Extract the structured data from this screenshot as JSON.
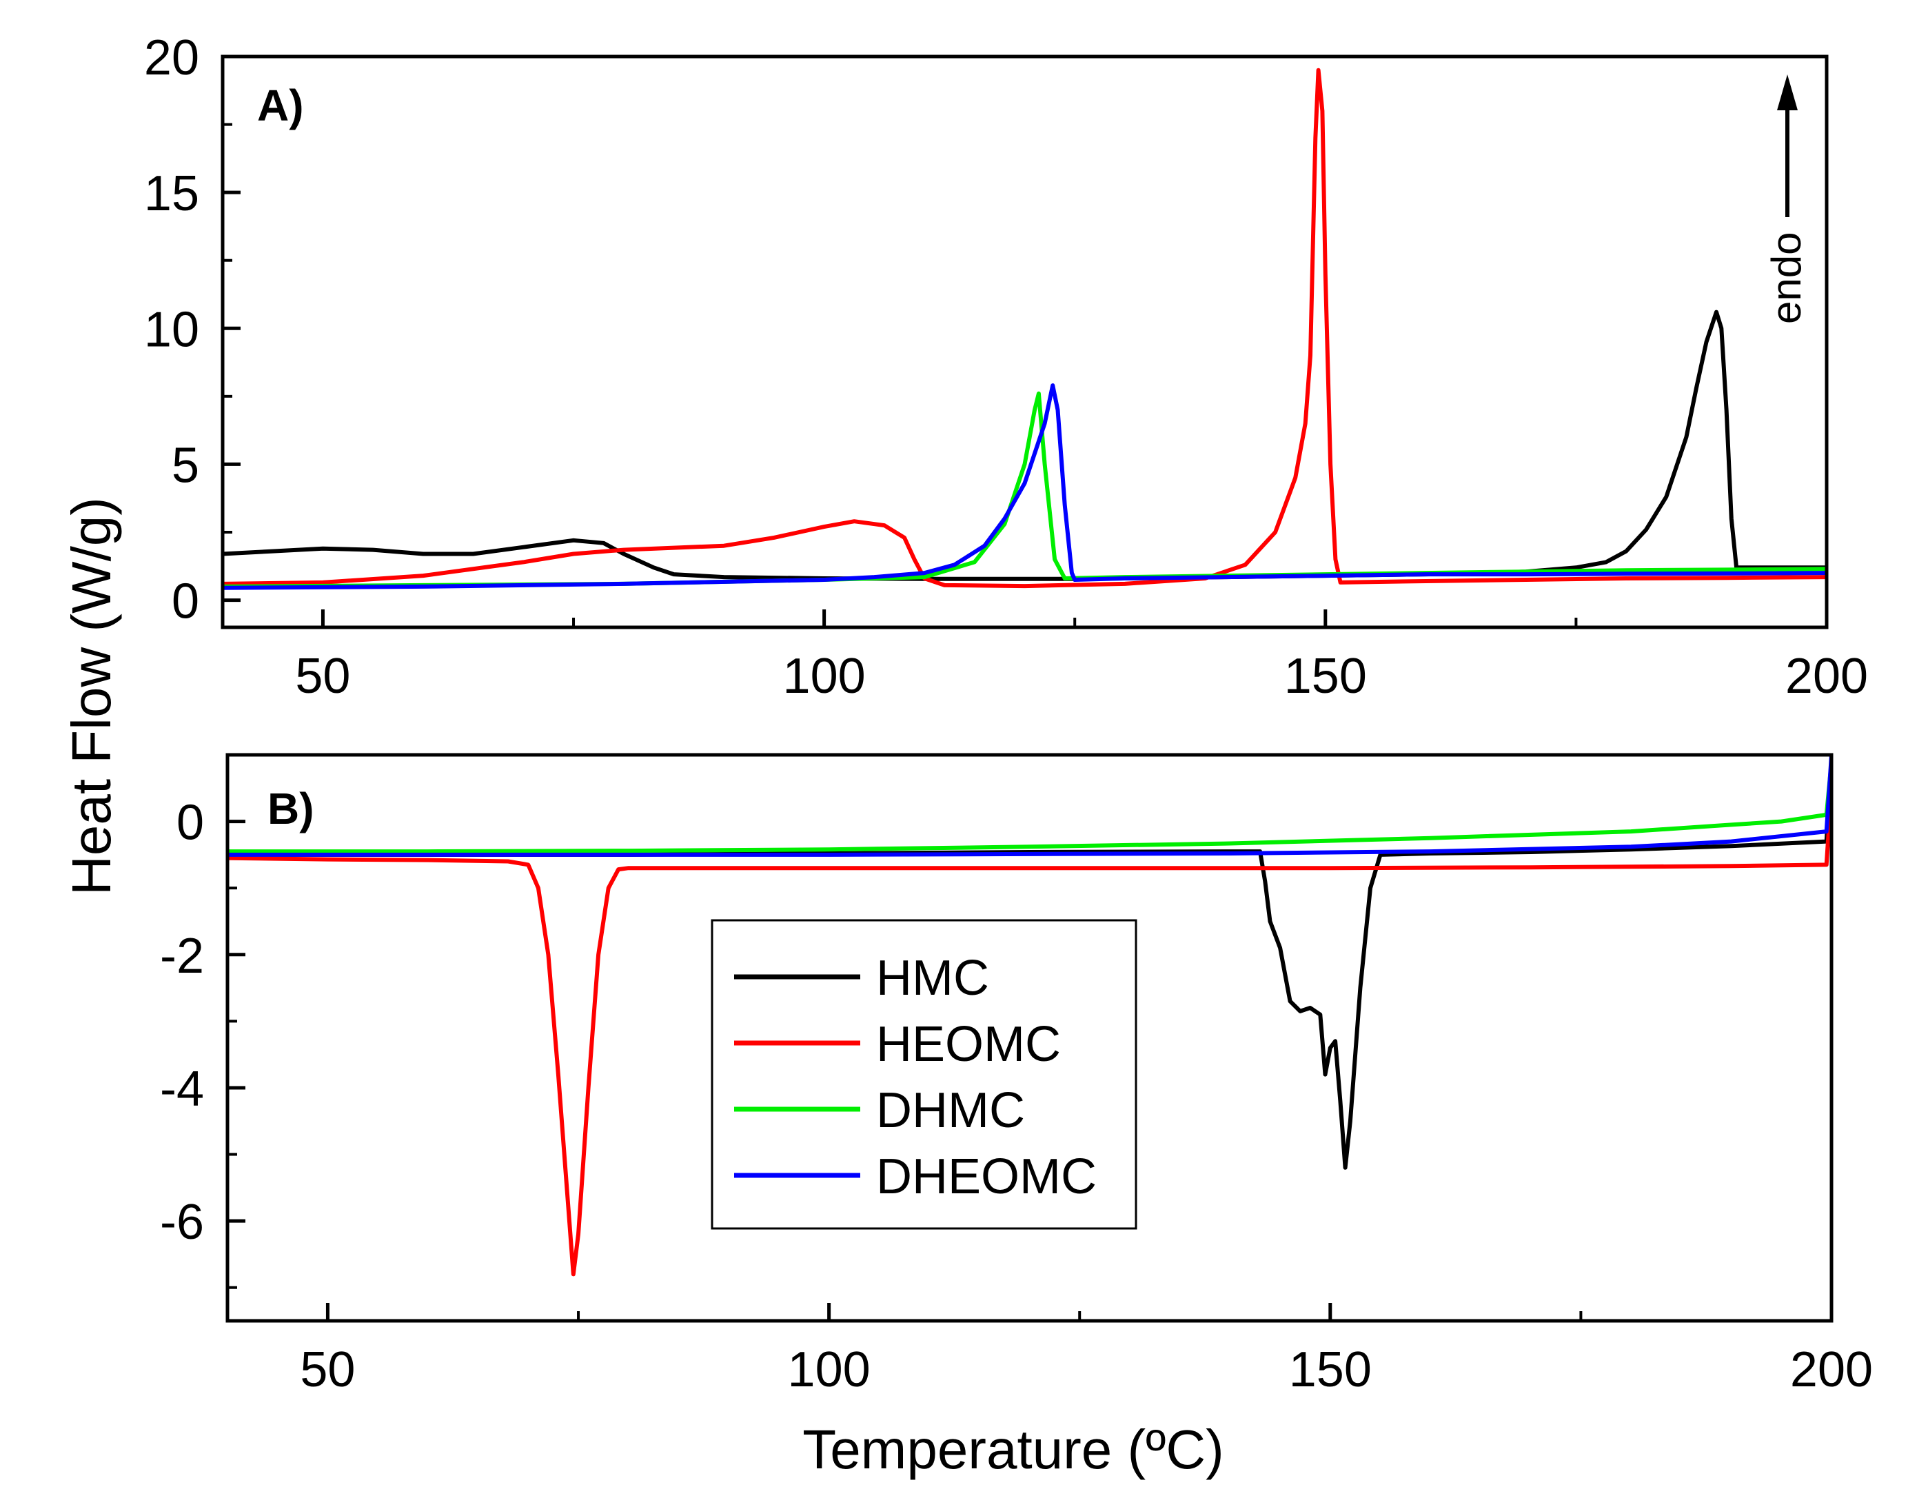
{
  "chart_data": [
    {
      "type": "line",
      "panel_label": "A)",
      "annotation": "endo",
      "xlabel": "",
      "ylabel": "Heat Flow (W/g)",
      "xlim": [
        40,
        200
      ],
      "ylim": [
        -1,
        20
      ],
      "xticks": [
        50,
        100,
        150,
        200
      ],
      "yticks": [
        0,
        5,
        10,
        15,
        20
      ],
      "grid": false,
      "series": [
        {
          "name": "HMC",
          "color": "#000000",
          "points": [
            [
              40,
              1.7
            ],
            [
              45,
              1.8
            ],
            [
              50,
              1.9
            ],
            [
              55,
              1.85
            ],
            [
              60,
              1.7
            ],
            [
              65,
              1.7
            ],
            [
              70,
              1.95
            ],
            [
              75,
              2.2
            ],
            [
              78,
              2.1
            ],
            [
              80,
              1.7
            ],
            [
              83,
              1.2
            ],
            [
              85,
              0.95
            ],
            [
              90,
              0.85
            ],
            [
              100,
              0.8
            ],
            [
              110,
              0.78
            ],
            [
              120,
              0.78
            ],
            [
              125,
              0.78
            ],
            [
              130,
              0.8
            ],
            [
              140,
              0.85
            ],
            [
              150,
              0.9
            ],
            [
              160,
              0.95
            ],
            [
              170,
              1.05
            ],
            [
              175,
              1.2
            ],
            [
              178,
              1.4
            ],
            [
              180,
              1.8
            ],
            [
              182,
              2.6
            ],
            [
              184,
              3.8
            ],
            [
              186,
              6.0
            ],
            [
              187,
              7.8
            ],
            [
              188,
              9.5
            ],
            [
              189,
              10.6
            ],
            [
              189.5,
              10.0
            ],
            [
              190,
              7.0
            ],
            [
              190.5,
              3.0
            ],
            [
              191,
              1.2
            ],
            [
              195,
              1.2
            ],
            [
              200,
              1.2
            ]
          ]
        },
        {
          "name": "HEOMC",
          "color": "#ff0000",
          "points": [
            [
              40,
              0.6
            ],
            [
              50,
              0.65
            ],
            [
              60,
              0.9
            ],
            [
              70,
              1.4
            ],
            [
              75,
              1.7
            ],
            [
              80,
              1.85
            ],
            [
              90,
              2.0
            ],
            [
              95,
              2.3
            ],
            [
              100,
              2.7
            ],
            [
              103,
              2.9
            ],
            [
              106,
              2.75
            ],
            [
              108,
              2.3
            ],
            [
              109,
              1.5
            ],
            [
              110,
              0.8
            ],
            [
              112,
              0.55
            ],
            [
              120,
              0.52
            ],
            [
              130,
              0.6
            ],
            [
              138,
              0.8
            ],
            [
              142,
              1.3
            ],
            [
              145,
              2.5
            ],
            [
              147,
              4.5
            ],
            [
              148,
              6.5
            ],
            [
              148.5,
              9.0
            ],
            [
              149,
              17.0
            ],
            [
              149.3,
              19.5
            ],
            [
              149.7,
              18.0
            ],
            [
              150,
              12.0
            ],
            [
              150.5,
              5.0
            ],
            [
              151,
              1.5
            ],
            [
              151.5,
              0.65
            ],
            [
              160,
              0.7
            ],
            [
              170,
              0.75
            ],
            [
              180,
              0.8
            ],
            [
              190,
              0.82
            ],
            [
              200,
              0.85
            ]
          ]
        },
        {
          "name": "DHMC",
          "color": "#00ee00",
          "points": [
            [
              40,
              0.5
            ],
            [
              60,
              0.55
            ],
            [
              80,
              0.6
            ],
            [
              100,
              0.75
            ],
            [
              105,
              0.8
            ],
            [
              110,
              0.85
            ],
            [
              115,
              1.4
            ],
            [
              118,
              2.8
            ],
            [
              120,
              5.0
            ],
            [
              121,
              7.0
            ],
            [
              121.4,
              7.6
            ],
            [
              122,
              5.0
            ],
            [
              123,
              1.5
            ],
            [
              124,
              0.8
            ],
            [
              130,
              0.85
            ],
            [
              140,
              0.9
            ],
            [
              150,
              0.95
            ],
            [
              160,
              1.0
            ],
            [
              170,
              1.05
            ],
            [
              180,
              1.1
            ],
            [
              190,
              1.12
            ],
            [
              200,
              1.15
            ]
          ]
        },
        {
          "name": "DHEOMC",
          "color": "#0000ff",
          "points": [
            [
              40,
              0.45
            ],
            [
              60,
              0.5
            ],
            [
              80,
              0.6
            ],
            [
              100,
              0.75
            ],
            [
              105,
              0.85
            ],
            [
              110,
              1.0
            ],
            [
              113,
              1.3
            ],
            [
              116,
              2.0
            ],
            [
              118,
              3.0
            ],
            [
              120,
              4.3
            ],
            [
              122,
              6.5
            ],
            [
              122.8,
              7.9
            ],
            [
              123.3,
              7.0
            ],
            [
              124,
              3.5
            ],
            [
              124.7,
              1.0
            ],
            [
              125,
              0.75
            ],
            [
              130,
              0.8
            ],
            [
              140,
              0.85
            ],
            [
              150,
              0.9
            ],
            [
              160,
              0.95
            ],
            [
              170,
              0.95
            ],
            [
              180,
              0.97
            ],
            [
              190,
              0.98
            ],
            [
              200,
              1.0
            ]
          ]
        }
      ]
    },
    {
      "type": "line",
      "panel_label": "B)",
      "xlabel": "Temperature (ºC)",
      "ylabel": "Heat Flow (W/g)",
      "xlim": [
        40,
        200
      ],
      "ylim": [
        -7.5,
        1
      ],
      "xticks": [
        50,
        100,
        150,
        200
      ],
      "yticks": [
        0,
        -2,
        -4,
        -6
      ],
      "grid": false,
      "legend": {
        "position": "center",
        "entries": [
          "HMC",
          "HEOMC",
          "DHMC",
          "DHEOMC"
        ]
      },
      "series": [
        {
          "name": "HMC",
          "color": "#000000",
          "points": [
            [
              40,
              -0.5
            ],
            [
              60,
              -0.5
            ],
            [
              80,
              -0.5
            ],
            [
              100,
              -0.48
            ],
            [
              120,
              -0.46
            ],
            [
              140,
              -0.45
            ],
            [
              143,
              -0.45
            ],
            [
              143.5,
              -0.9
            ],
            [
              144,
              -1.5
            ],
            [
              145,
              -1.9
            ],
            [
              146,
              -2.7
            ],
            [
              147,
              -2.85
            ],
            [
              148,
              -2.8
            ],
            [
              149,
              -2.9
            ],
            [
              149.5,
              -3.8
            ],
            [
              150,
              -3.4
            ],
            [
              150.5,
              -3.3
            ],
            [
              151,
              -4.2
            ],
            [
              151.5,
              -5.2
            ],
            [
              152,
              -4.5
            ],
            [
              153,
              -2.5
            ],
            [
              154,
              -1.0
            ],
            [
              155,
              -0.5
            ],
            [
              160,
              -0.48
            ],
            [
              170,
              -0.46
            ],
            [
              180,
              -0.42
            ],
            [
              190,
              -0.37
            ],
            [
              199.5,
              -0.3
            ],
            [
              200,
              0.9
            ]
          ]
        },
        {
          "name": "HEOMC",
          "color": "#ff0000",
          "points": [
            [
              40,
              -0.55
            ],
            [
              50,
              -0.57
            ],
            [
              60,
              -0.58
            ],
            [
              68,
              -0.6
            ],
            [
              70,
              -0.65
            ],
            [
              71,
              -1.0
            ],
            [
              72,
              -2.0
            ],
            [
              73,
              -3.8
            ],
            [
              74,
              -5.8
            ],
            [
              74.5,
              -6.8
            ],
            [
              75,
              -6.2
            ],
            [
              76,
              -4.0
            ],
            [
              77,
              -2.0
            ],
            [
              78,
              -1.0
            ],
            [
              79,
              -0.72
            ],
            [
              80,
              -0.7
            ],
            [
              100,
              -0.7
            ],
            [
              120,
              -0.7
            ],
            [
              150,
              -0.7
            ],
            [
              170,
              -0.69
            ],
            [
              190,
              -0.67
            ],
            [
              199.5,
              -0.65
            ],
            [
              200,
              0.5
            ]
          ]
        },
        {
          "name": "DHMC",
          "color": "#00ee00",
          "points": [
            [
              40,
              -0.45
            ],
            [
              60,
              -0.45
            ],
            [
              80,
              -0.44
            ],
            [
              100,
              -0.42
            ],
            [
              120,
              -0.38
            ],
            [
              140,
              -0.33
            ],
            [
              160,
              -0.25
            ],
            [
              180,
              -0.15
            ],
            [
              190,
              -0.05
            ],
            [
              195,
              0.0
            ],
            [
              199.5,
              0.1
            ],
            [
              200,
              0.9
            ]
          ]
        },
        {
          "name": "DHEOMC",
          "color": "#0000ff",
          "points": [
            [
              40,
              -0.5
            ],
            [
              60,
              -0.5
            ],
            [
              80,
              -0.5
            ],
            [
              100,
              -0.5
            ],
            [
              120,
              -0.49
            ],
            [
              140,
              -0.48
            ],
            [
              160,
              -0.45
            ],
            [
              180,
              -0.38
            ],
            [
              190,
              -0.3
            ],
            [
              199.5,
              -0.15
            ],
            [
              200,
              1.0
            ]
          ]
        }
      ]
    }
  ]
}
